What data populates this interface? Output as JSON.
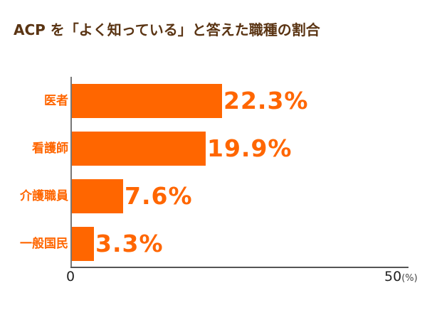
{
  "chart": {
    "title": "ACP を「よく知っている」と答えた職種の割合",
    "bar_color": "#ff6600",
    "title_color": "#5a3413",
    "bars": [
      {
        "label": "医者",
        "value": 22.3,
        "value_label": "22.3%"
      },
      {
        "label": "看護師",
        "value": 19.9,
        "value_label": "19.9%"
      },
      {
        "label": "介護職員",
        "value": 7.6,
        "value_label": "7.6%"
      },
      {
        "label": "一般国民",
        "value": 3.3,
        "value_label": "3.3%"
      }
    ],
    "x_ticks": {
      "min": "0",
      "max": "50",
      "unit": "(%)"
    }
  },
  "chart_data": {
    "type": "bar",
    "orientation": "horizontal",
    "title": "ACP を「よく知っている」と答えた職種の割合",
    "categories": [
      "医者",
      "看護師",
      "介護職員",
      "一般国民"
    ],
    "values": [
      22.3,
      19.9,
      7.6,
      3.3
    ],
    "data_labels": [
      "22.3%",
      "19.9%",
      "7.6%",
      "3.3%"
    ],
    "xlabel": "(%)",
    "ylabel": "",
    "xlim": [
      0,
      50
    ],
    "x_tick_labels": [
      "0",
      "50"
    ],
    "grid": false,
    "legend": null
  }
}
